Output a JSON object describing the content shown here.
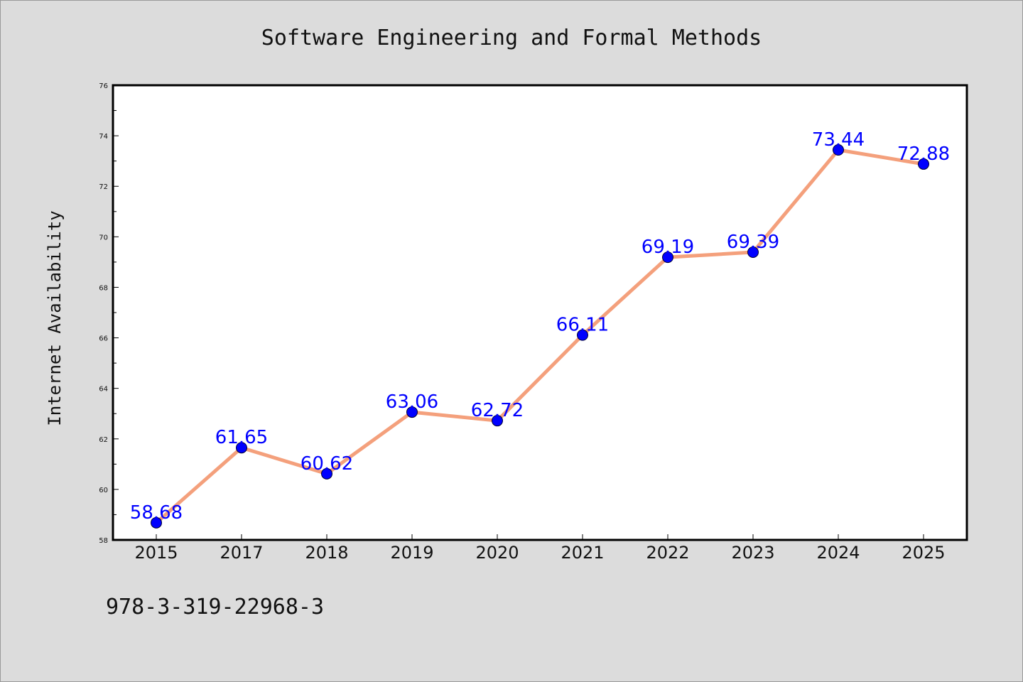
{
  "chart_data": {
    "type": "line",
    "title": "Software Engineering and Formal Methods",
    "xlabel": "",
    "ylabel": "Internet Availability",
    "categories": [
      "2015",
      "2017",
      "2018",
      "2019",
      "2020",
      "2021",
      "2022",
      "2023",
      "2024",
      "2025"
    ],
    "series": [
      {
        "values": [
          58.68,
          61.65,
          60.62,
          63.06,
          62.72,
          66.11,
          69.19,
          69.39,
          73.44,
          72.88
        ],
        "line_color": "#f4a07c",
        "marker_color": "#0000ff"
      }
    ],
    "data_labels": [
      "58.68",
      "61.65",
      "60.62",
      "63.06",
      "62.72",
      "66.11",
      "69.19",
      "69.39",
      "73.44",
      "72.88"
    ],
    "ylim": [
      58,
      76
    ],
    "yticks": [
      58,
      60,
      62,
      64,
      66,
      68,
      70,
      72,
      74,
      76
    ],
    "ytick_labels": [
      "58",
      "60",
      "62",
      "64",
      "66",
      "68",
      "70",
      "72",
      "74",
      "76"
    ],
    "grid": false,
    "legend": "none"
  },
  "footer": {
    "isbn": "978-3-319-22968-3"
  },
  "colors": {
    "background": "#dcdcdc",
    "plot_background": "#ffffff",
    "data_label": "#0000ff"
  }
}
